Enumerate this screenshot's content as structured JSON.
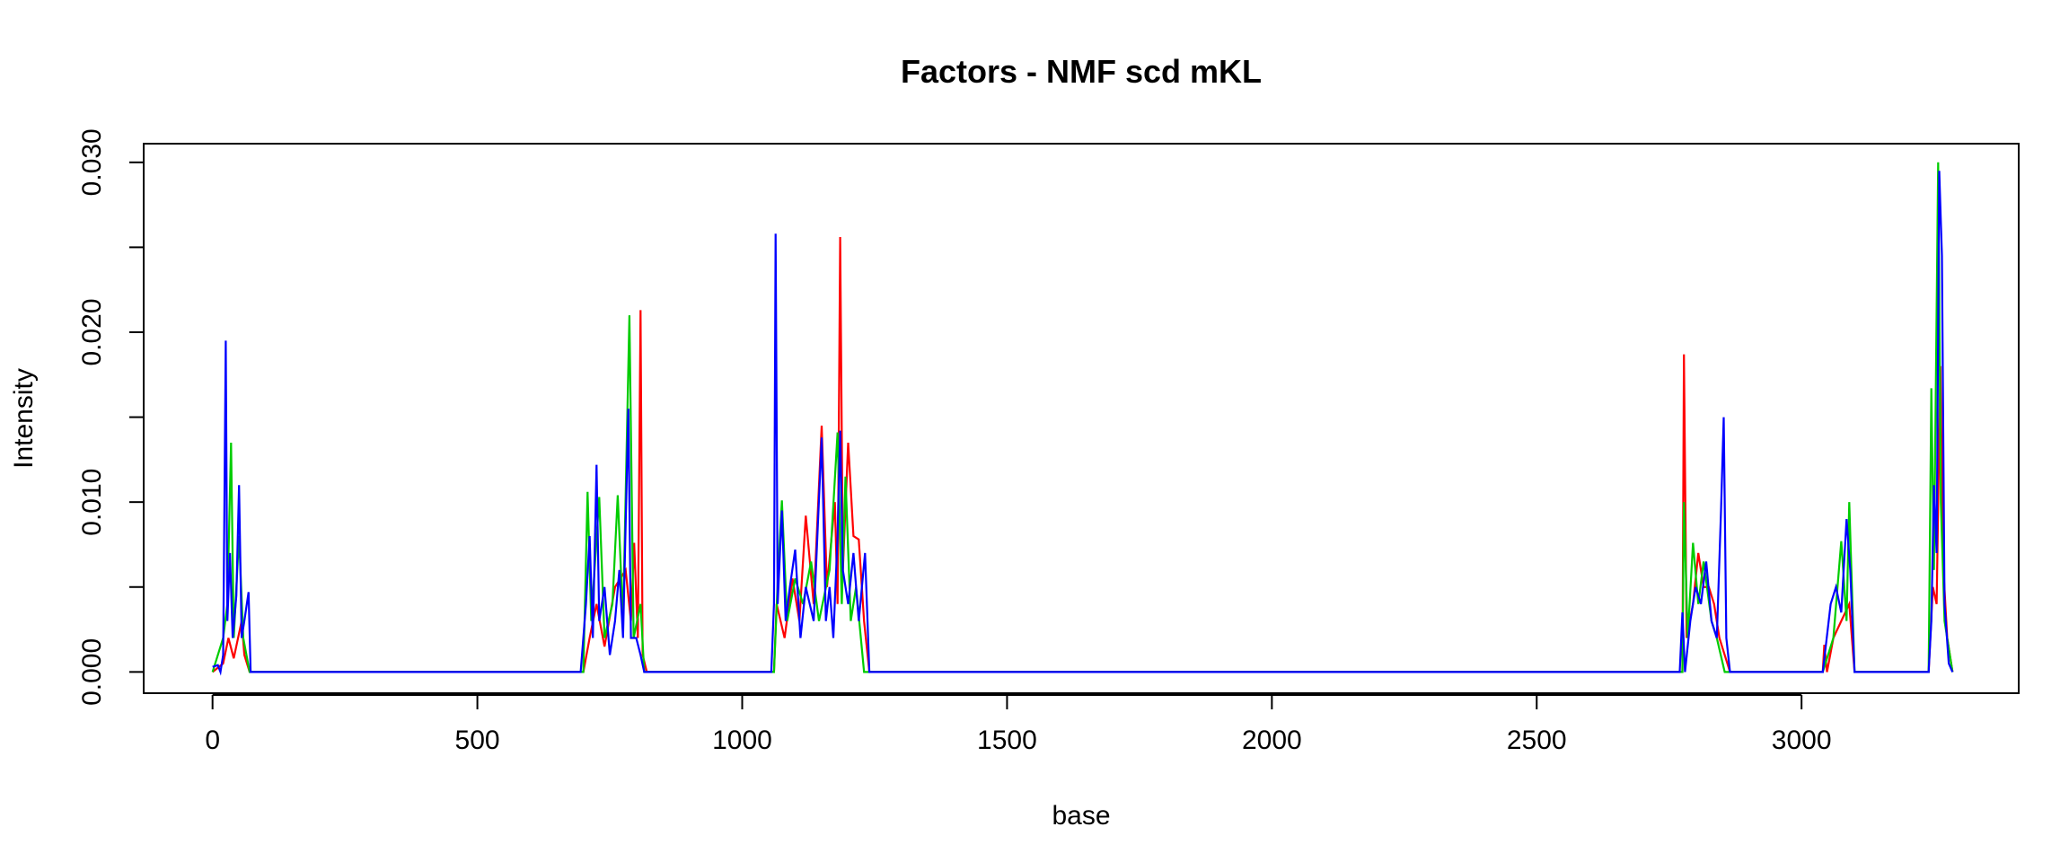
{
  "chart_data": {
    "type": "line",
    "title": "Factors - NMF scd mKL",
    "xlabel": "base",
    "ylabel": "Intensity",
    "xlim": [
      -130,
      3410
    ],
    "ylim": [
      -0.00125,
      0.0311
    ],
    "x_ticks": [
      0,
      500,
      1000,
      1500,
      2000,
      2500,
      3000
    ],
    "x_tick_labels": [
      "0",
      "500",
      "1000",
      "1500",
      "2000",
      "2500",
      "3000"
    ],
    "y_ticks": [
      0.0,
      0.005,
      0.01,
      0.015,
      0.02,
      0.025,
      0.03
    ],
    "y_tick_labels": [
      "0.000",
      "",
      "0.010",
      "",
      "0.020",
      "",
      "0.030"
    ],
    "grid": false,
    "legend": "none",
    "series": [
      {
        "color": "#ff0000",
        "points": [
          [
            0,
            0
          ],
          [
            20,
            0.0005
          ],
          [
            30,
            0.002
          ],
          [
            40,
            0.0008
          ],
          [
            55,
            0.003
          ],
          [
            60,
            0.001
          ],
          [
            70,
            0
          ],
          [
            700,
            0
          ],
          [
            712,
            0.002
          ],
          [
            725,
            0.004
          ],
          [
            740,
            0.0015
          ],
          [
            760,
            0.005
          ],
          [
            780,
            0.006
          ],
          [
            790,
            0.003
          ],
          [
            796,
            0.0076
          ],
          [
            803,
            0.002
          ],
          [
            808,
            0.0213
          ],
          [
            812,
            0.001
          ],
          [
            820,
            0
          ],
          [
            1060,
            0
          ],
          [
            1065,
            0.004
          ],
          [
            1080,
            0.002
          ],
          [
            1095,
            0.0055
          ],
          [
            1108,
            0.003
          ],
          [
            1120,
            0.0092
          ],
          [
            1135,
            0.004
          ],
          [
            1150,
            0.0145
          ],
          [
            1160,
            0.005
          ],
          [
            1175,
            0.01
          ],
          [
            1180,
            0.004
          ],
          [
            1185,
            0.0256
          ],
          [
            1190,
            0.006
          ],
          [
            1200,
            0.0135
          ],
          [
            1210,
            0.008
          ],
          [
            1220,
            0.0078
          ],
          [
            1230,
            0.003
          ],
          [
            1240,
            0
          ],
          [
            2775,
            0
          ],
          [
            2778,
            0.0187
          ],
          [
            2783,
            0.002
          ],
          [
            2795,
            0.004
          ],
          [
            2805,
            0.007
          ],
          [
            2815,
            0.005
          ],
          [
            2825,
            0.005
          ],
          [
            2835,
            0.004
          ],
          [
            2845,
            0.002
          ],
          [
            2855,
            0.001
          ],
          [
            2865,
            0
          ],
          [
            3040,
            0
          ],
          [
            3043,
            0.0016
          ],
          [
            3048,
            0
          ],
          [
            3060,
            0.002
          ],
          [
            3075,
            0.003
          ],
          [
            3090,
            0.004
          ],
          [
            3100,
            0
          ],
          [
            3240,
            0
          ],
          [
            3248,
            0.005
          ],
          [
            3255,
            0.004
          ],
          [
            3262,
            0.018
          ],
          [
            3268,
            0.006
          ],
          [
            3275,
            0.002
          ],
          [
            3285,
            0
          ]
        ]
      },
      {
        "color": "#00cc00",
        "points": [
          [
            0,
            0
          ],
          [
            20,
            0.002
          ],
          [
            28,
            0.004
          ],
          [
            35,
            0.0135
          ],
          [
            40,
            0.002
          ],
          [
            50,
            0.008
          ],
          [
            58,
            0.002
          ],
          [
            70,
            0
          ],
          [
            700,
            0
          ],
          [
            708,
            0.0106
          ],
          [
            715,
            0.003
          ],
          [
            730,
            0.0103
          ],
          [
            740,
            0.002
          ],
          [
            755,
            0.004
          ],
          [
            765,
            0.0104
          ],
          [
            775,
            0.003
          ],
          [
            787,
            0.021
          ],
          [
            795,
            0.002
          ],
          [
            808,
            0.004
          ],
          [
            815,
            0
          ],
          [
            1060,
            0
          ],
          [
            1068,
            0.006
          ],
          [
            1075,
            0.0101
          ],
          [
            1085,
            0.003
          ],
          [
            1100,
            0.0055
          ],
          [
            1115,
            0.004
          ],
          [
            1130,
            0.0065
          ],
          [
            1145,
            0.003
          ],
          [
            1165,
            0.006
          ],
          [
            1180,
            0.0141
          ],
          [
            1188,
            0.004
          ],
          [
            1195,
            0.0115
          ],
          [
            1205,
            0.003
          ],
          [
            1215,
            0.005
          ],
          [
            1230,
            0
          ],
          [
            2775,
            0
          ],
          [
            2778,
            0.01
          ],
          [
            2785,
            0.002
          ],
          [
            2795,
            0.0076
          ],
          [
            2805,
            0.004
          ],
          [
            2815,
            0.0065
          ],
          [
            2830,
            0.003
          ],
          [
            2840,
            0.002
          ],
          [
            2855,
            0
          ],
          [
            3040,
            0
          ],
          [
            3060,
            0.002
          ],
          [
            3075,
            0.0077
          ],
          [
            3085,
            0.003
          ],
          [
            3090,
            0.01
          ],
          [
            3100,
            0
          ],
          [
            3240,
            0
          ],
          [
            3245,
            0.0167
          ],
          [
            3250,
            0.006
          ],
          [
            3258,
            0.03
          ],
          [
            3263,
            0.01
          ],
          [
            3270,
            0.003
          ],
          [
            3285,
            0
          ]
        ]
      },
      {
        "color": "#0000ff",
        "points": [
          [
            0,
            0.0003
          ],
          [
            10,
            0.0004
          ],
          [
            15,
            0
          ],
          [
            20,
            0.001
          ],
          [
            25,
            0.0195
          ],
          [
            28,
            0.003
          ],
          [
            33,
            0.007
          ],
          [
            38,
            0.002
          ],
          [
            45,
            0.0045
          ],
          [
            50,
            0.011
          ],
          [
            55,
            0.002
          ],
          [
            60,
            0.003
          ],
          [
            68,
            0.0047
          ],
          [
            72,
            0
          ],
          [
            695,
            0
          ],
          [
            700,
            0.002
          ],
          [
            705,
            0.004
          ],
          [
            712,
            0.008
          ],
          [
            718,
            0.002
          ],
          [
            725,
            0.0122
          ],
          [
            730,
            0.003
          ],
          [
            740,
            0.005
          ],
          [
            750,
            0.001
          ],
          [
            760,
            0.003
          ],
          [
            768,
            0.006
          ],
          [
            775,
            0.002
          ],
          [
            785,
            0.0155
          ],
          [
            790,
            0.002
          ],
          [
            800,
            0.002
          ],
          [
            808,
            0.001
          ],
          [
            815,
            0
          ],
          [
            1055,
            0
          ],
          [
            1060,
            0.004
          ],
          [
            1063,
            0.0258
          ],
          [
            1067,
            0.004
          ],
          [
            1075,
            0.0095
          ],
          [
            1082,
            0.003
          ],
          [
            1090,
            0.005
          ],
          [
            1100,
            0.0072
          ],
          [
            1110,
            0.002
          ],
          [
            1120,
            0.005
          ],
          [
            1135,
            0.003
          ],
          [
            1150,
            0.0138
          ],
          [
            1158,
            0.003
          ],
          [
            1165,
            0.005
          ],
          [
            1172,
            0.002
          ],
          [
            1180,
            0.008
          ],
          [
            1185,
            0.0142
          ],
          [
            1190,
            0.006
          ],
          [
            1200,
            0.004
          ],
          [
            1210,
            0.007
          ],
          [
            1220,
            0.003
          ],
          [
            1232,
            0.007
          ],
          [
            1240,
            0
          ],
          [
            2770,
            0
          ],
          [
            2775,
            0.0035
          ],
          [
            2780,
            0
          ],
          [
            2790,
            0.003
          ],
          [
            2800,
            0.005
          ],
          [
            2810,
            0.004
          ],
          [
            2820,
            0.0065
          ],
          [
            2830,
            0.003
          ],
          [
            2840,
            0.002
          ],
          [
            2848,
            0.0095
          ],
          [
            2853,
            0.015
          ],
          [
            2858,
            0.002
          ],
          [
            2865,
            0
          ],
          [
            3040,
            0
          ],
          [
            3055,
            0.004
          ],
          [
            3065,
            0.005
          ],
          [
            3075,
            0.0035
          ],
          [
            3085,
            0.009
          ],
          [
            3092,
            0.006
          ],
          [
            3100,
            0
          ],
          [
            3240,
            0
          ],
          [
            3245,
            0.003
          ],
          [
            3250,
            0.011
          ],
          [
            3255,
            0.007
          ],
          [
            3260,
            0.0295
          ],
          [
            3265,
            0.0245
          ],
          [
            3270,
            0.004
          ],
          [
            3278,
            0.0005
          ],
          [
            3285,
            0
          ]
        ]
      }
    ]
  }
}
